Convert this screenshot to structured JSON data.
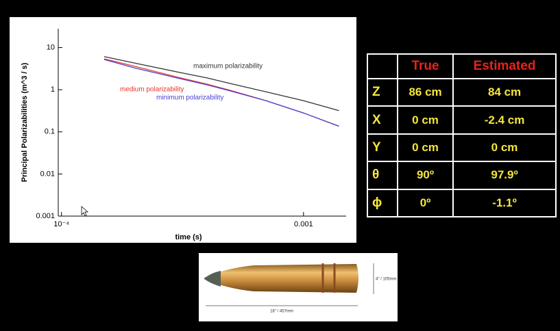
{
  "chart_data": {
    "type": "line",
    "x_label": "time (s)",
    "y_label": "Principal Polarizabilities  (m^3 / s)",
    "log_x": true,
    "log_y": true,
    "xlim": [
      9.7e-05,
      0.0015
    ],
    "ylim": [
      0.001,
      28
    ],
    "xticks": [
      {
        "value": 0.0001,
        "label": "10⁻⁴"
      },
      0.001
    ],
    "yticks": [
      10,
      1,
      0.1,
      0.01,
      0.001
    ],
    "x": [
      0.00015,
      0.0002,
      0.0003,
      0.0004,
      0.0005,
      0.0007,
      0.001,
      0.0014
    ],
    "series": [
      {
        "name": "maximum polarizability",
        "color": "#333333",
        "values": [
          6.1,
          4.3,
          2.65,
          1.9,
          1.4,
          0.89,
          0.55,
          0.32
        ]
      },
      {
        "name": "medium polarizability",
        "color": "#e8322d",
        "values": [
          5.4,
          3.6,
          2.0,
          1.35,
          0.96,
          0.55,
          0.28,
          0.137
        ]
      },
      {
        "name": "minimum polarizability",
        "color": "#4a3ed6",
        "values": [
          5.2,
          3.3,
          1.9,
          1.3,
          0.93,
          0.55,
          0.28,
          0.135
        ]
      }
    ]
  },
  "table": {
    "header": [
      "True",
      "Estimated"
    ],
    "rows": [
      [
        "Z",
        "86 cm",
        "84 cm"
      ],
      [
        "X",
        "0 cm",
        "-2.4 cm"
      ],
      [
        "Y",
        "0 cm",
        "0 cm"
      ],
      [
        "θ",
        "90º",
        "97.9º"
      ],
      [
        "ϕ",
        "0º",
        "-1.1º"
      ]
    ]
  },
  "image": {
    "diameter_label": "4\" / 105mm",
    "length_label": "18\" / 457mm"
  }
}
